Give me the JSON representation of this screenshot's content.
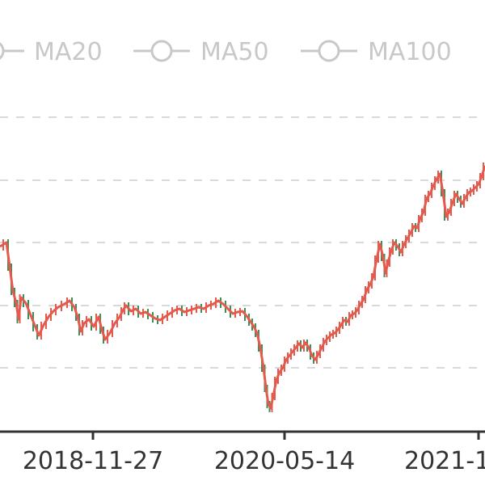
{
  "chart_data": {
    "type": "line",
    "title": "",
    "xlabel": "",
    "ylabel": "",
    "x_tick_labels": [
      "2018-11-27",
      "2020-05-14",
      "2021-1"
    ],
    "legend": {
      "items": [
        {
          "name": "MA20",
          "color": "#c8c8c8",
          "active": false
        },
        {
          "name": "MA50",
          "color": "#c8c8c8",
          "active": false
        },
        {
          "name": "MA100",
          "color": "#c8c8c8",
          "active": false
        }
      ],
      "placement": "top"
    },
    "grid": {
      "horizontal": true,
      "style": "dashed",
      "color": "#d9d9d9"
    },
    "colors": {
      "rise": "#e45a4d",
      "fall": "#3c8f5a",
      "axis": "#333333"
    },
    "series": [
      {
        "name": "",
        "type": "candlestick-trace",
        "points": [
          [
            0,
            305
          ],
          [
            8,
            300
          ],
          [
            12,
            330
          ],
          [
            16,
            360
          ],
          [
            20,
            375
          ],
          [
            23,
            395
          ],
          [
            26,
            368
          ],
          [
            32,
            375
          ],
          [
            38,
            390
          ],
          [
            44,
            405
          ],
          [
            48,
            415
          ],
          [
            54,
            402
          ],
          [
            60,
            392
          ],
          [
            66,
            385
          ],
          [
            72,
            380
          ],
          [
            80,
            376
          ],
          [
            86,
            372
          ],
          [
            92,
            380
          ],
          [
            96,
            392
          ],
          [
            100,
            410
          ],
          [
            104,
            400
          ],
          [
            110,
            395
          ],
          [
            116,
            404
          ],
          [
            122,
            392
          ],
          [
            126,
            408
          ],
          [
            130,
            420
          ],
          [
            136,
            412
          ],
          [
            142,
            400
          ],
          [
            148,
            392
          ],
          [
            152,
            384
          ],
          [
            156,
            378
          ],
          [
            162,
            385
          ],
          [
            168,
            382
          ],
          [
            174,
            388
          ],
          [
            180,
            386
          ],
          [
            186,
            390
          ],
          [
            192,
            394
          ],
          [
            198,
            396
          ],
          [
            204,
            392
          ],
          [
            210,
            388
          ],
          [
            216,
            384
          ],
          [
            222,
            382
          ],
          [
            228,
            386
          ],
          [
            234,
            384
          ],
          [
            240,
            382
          ],
          [
            246,
            380
          ],
          [
            252,
            382
          ],
          [
            258,
            378
          ],
          [
            264,
            376
          ],
          [
            270,
            372
          ],
          [
            276,
            376
          ],
          [
            282,
            382
          ],
          [
            288,
            388
          ],
          [
            294,
            386
          ],
          [
            300,
            385
          ],
          [
            306,
            392
          ],
          [
            310,
            398
          ],
          [
            314,
            404
          ],
          [
            318,
            412
          ],
          [
            322,
            430
          ],
          [
            326,
            455
          ],
          [
            329,
            480
          ],
          [
            332,
            500
          ],
          [
            335,
            505
          ],
          [
            338,
            490
          ],
          [
            342,
            470
          ],
          [
            346,
            460
          ],
          [
            350,
            455
          ],
          [
            354,
            445
          ],
          [
            358,
            440
          ],
          [
            362,
            435
          ],
          [
            366,
            430
          ],
          [
            370,
            425
          ],
          [
            374,
            430
          ],
          [
            378,
            424
          ],
          [
            382,
            430
          ],
          [
            386,
            440
          ],
          [
            390,
            445
          ],
          [
            394,
            438
          ],
          [
            398,
            430
          ],
          [
            402,
            422
          ],
          [
            406,
            418
          ],
          [
            410,
            414
          ],
          [
            414,
            412
          ],
          [
            418,
            408
          ],
          [
            422,
            402
          ],
          [
            426,
            396
          ],
          [
            430,
            398
          ],
          [
            434,
            390
          ],
          [
            438,
            388
          ],
          [
            442,
            384
          ],
          [
            446,
            376
          ],
          [
            450,
            370
          ],
          [
            454,
            358
          ],
          [
            458,
            352
          ],
          [
            462,
            342
          ],
          [
            466,
            320
          ],
          [
            470,
            302
          ],
          [
            474,
            318
          ],
          [
            477,
            338
          ],
          [
            480,
            325
          ],
          [
            484,
            310
          ],
          [
            488,
            300
          ],
          [
            492,
            305
          ],
          [
            496,
            312
          ],
          [
            500,
            302
          ],
          [
            504,
            295
          ],
          [
            508,
            288
          ],
          [
            512,
            280
          ],
          [
            516,
            282
          ],
          [
            520,
            270
          ],
          [
            524,
            262
          ],
          [
            528,
            245
          ],
          [
            532,
            240
          ],
          [
            536,
            230
          ],
          [
            540,
            222
          ],
          [
            544,
            215
          ],
          [
            548,
            238
          ],
          [
            552,
            268
          ],
          [
            556,
            262
          ],
          [
            560,
            250
          ],
          [
            564,
            240
          ],
          [
            568,
            246
          ],
          [
            572,
            252
          ],
          [
            576,
            244
          ],
          [
            580,
            238
          ],
          [
            584,
            236
          ],
          [
            588,
            232
          ],
          [
            592,
            228
          ],
          [
            596,
            218
          ],
          [
            600,
            205
          ]
        ]
      }
    ]
  }
}
